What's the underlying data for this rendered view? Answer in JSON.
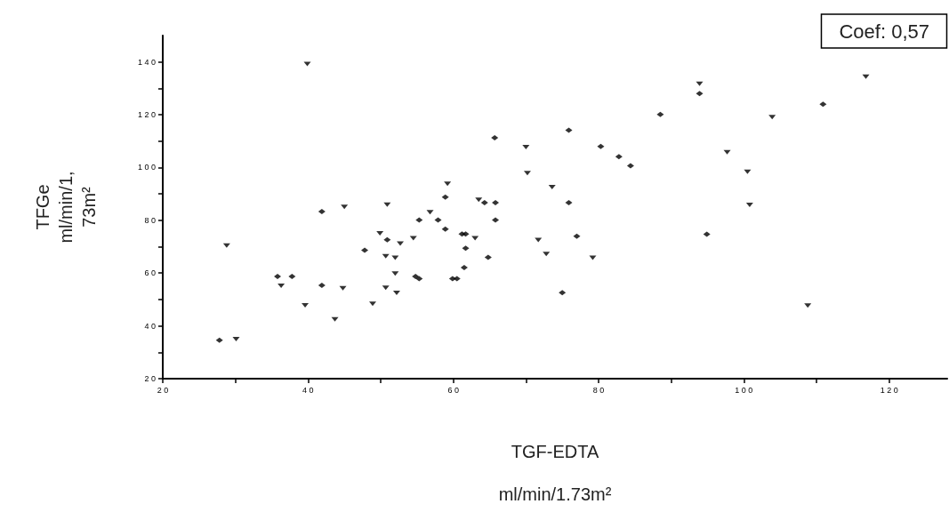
{
  "chart_data": {
    "type": "scatter",
    "xlabel": "TGF-EDTA\nml/min/1.73m²",
    "ylabel": "TFGe\nml/min/1,\n73m²",
    "annotations": [
      "Coef: 0,57"
    ],
    "xlim": [
      20,
      128
    ],
    "xticks": [
      20,
      {
        "value": 30,
        "label": null
      },
      40,
      {
        "value": 50,
        "label": null
      },
      60,
      {
        "value": 70,
        "label": null
      },
      80,
      {
        "value": 90,
        "label": null
      },
      100,
      {
        "value": 110,
        "label": null
      },
      120
    ],
    "ylim": [
      20,
      150
    ],
    "yticks": [
      20,
      {
        "value": 30,
        "label": null
      },
      40,
      {
        "value": 50,
        "label": null
      },
      60,
      {
        "value": 70,
        "label": null
      },
      80,
      {
        "value": 90,
        "label": null
      },
      100,
      {
        "value": 110,
        "label": null
      },
      120,
      {
        "value": 130,
        "label": null
      },
      140
    ],
    "series": [
      {
        "color": "#000000",
        "marker": "triangle",
        "x": [
          30.1,
          28.8,
          39.9,
          36.3,
          39.6,
          43.7,
          44.8,
          45.0,
          48.9,
          49.9,
          50.7,
          50.7,
          50.9,
          52.0,
          52.0,
          52.2,
          52.7,
          54.5,
          56.8,
          59.2,
          63.0,
          63.5,
          70.0,
          70.2,
          71.7,
          72.8,
          73.6,
          79.2,
          93.9,
          97.7,
          100.5,
          100.8,
          103.9,
          108.8,
          116.8
        ],
        "values": [
          35.0,
          70.4,
          139.2,
          55.2,
          47.8,
          42.5,
          54.3,
          85.1,
          48.4,
          75.1,
          54.4,
          66.4,
          85.9,
          65.8,
          59.8,
          52.5,
          71.2,
          73.2,
          83.1,
          93.8,
          73.2,
          87.8,
          107.7,
          97.9,
          72.5,
          67.2,
          92.6,
          65.8,
          131.7,
          105.8,
          98.4,
          85.8,
          119.1,
          47.7,
          134.4
        ]
      },
      {
        "color": "#000000",
        "marker": "diamond",
        "x": [
          27.8,
          35.8,
          37.8,
          41.9,
          41.9,
          47.8,
          50.9,
          54.8,
          55.3,
          55.3,
          57.9,
          58.9,
          58.9,
          59.9,
          60.5,
          61.2,
          61.7,
          61.7,
          61.5,
          64.3,
          64.8,
          65.7,
          65.8,
          65.8,
          75.0,
          75.9,
          75.9,
          77.0,
          80.3,
          82.8,
          84.4,
          88.5,
          93.9,
          94.9,
          110.9
        ],
        "values": [
          34.6,
          58.7,
          58.7,
          55.4,
          83.3,
          68.7,
          72.6,
          58.7,
          57.9,
          80.1,
          80.1,
          76.7,
          88.8,
          57.9,
          57.9,
          74.8,
          74.8,
          69.4,
          62.1,
          86.7,
          66.0,
          111.3,
          86.7,
          80.1,
          52.6,
          114.1,
          86.7,
          74.0,
          108.0,
          104.1,
          100.7,
          120.1,
          128.0,
          74.7,
          124.0
        ]
      }
    ]
  }
}
